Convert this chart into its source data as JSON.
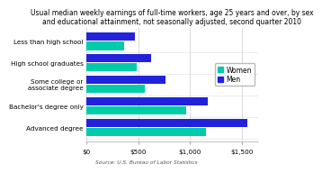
{
  "title_line1": "Usual median weekly earnings of full-time workers, age 25 years and over, by sex",
  "title_line2": "and educational attainment, not seasonally adjusted, second quarter 2010",
  "categories": [
    "Less than high school",
    "High school graduates",
    "Some college or\nassociate degree",
    "Bachelor's degree only",
    "Advanced degree"
  ],
  "women": [
    370,
    483,
    561,
    958,
    1155
  ],
  "men": [
    471,
    626,
    760,
    1168,
    1550
  ],
  "women_color": "#00ccaa",
  "men_color": "#2222dd",
  "bg_color": "#ffffff",
  "grid_color": "#cccccc",
  "xlabel_ticks": [
    0,
    500,
    1000,
    1500
  ],
  "xlabel_labels": [
    "$0",
    "$500",
    "$1,000",
    "$1,500"
  ],
  "source": "Source: U.S. Bureau of Labor Statistics",
  "xlim": [
    0,
    1650
  ],
  "legend_women": "Women",
  "legend_men": "Men",
  "title_fontsize": 5.5,
  "tick_fontsize": 5.2,
  "label_fontsize": 5.2,
  "source_fontsize": 4.2,
  "legend_fontsize": 5.5
}
